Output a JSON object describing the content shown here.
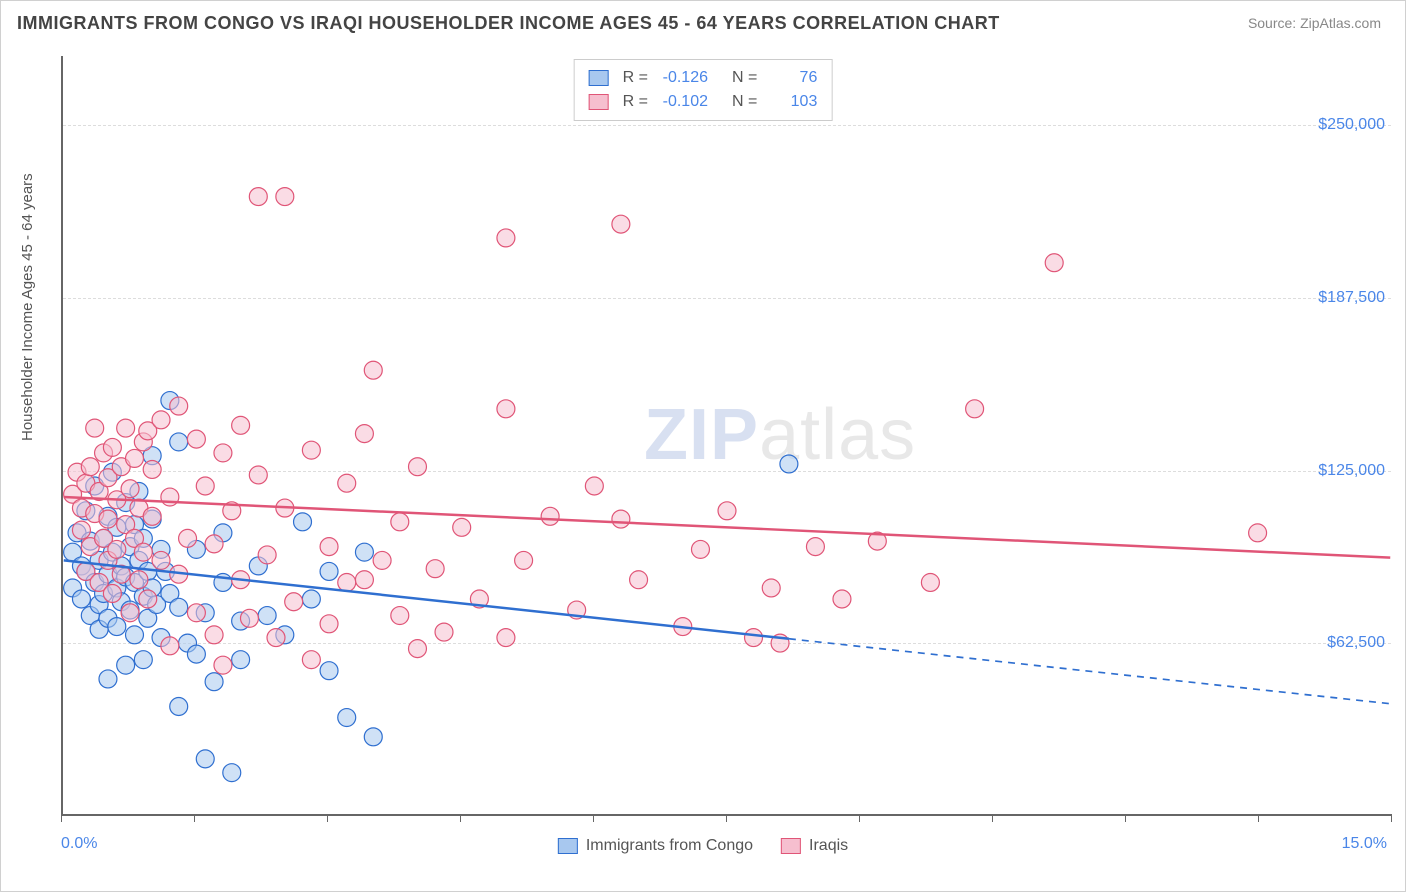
{
  "title": "IMMIGRANTS FROM CONGO VS IRAQI HOUSEHOLDER INCOME AGES 45 - 64 YEARS CORRELATION CHART",
  "source": "Source: ZipAtlas.com",
  "watermark_a": "ZIP",
  "watermark_b": "atlas",
  "chart": {
    "type": "scatter",
    "ylabel": "Householder Income Ages 45 - 64 years",
    "xlim": [
      0.0,
      15.0
    ],
    "ylim": [
      0,
      275000
    ],
    "ytick_values": [
      62500,
      125000,
      187500,
      250000
    ],
    "ytick_labels": [
      "$62,500",
      "$125,000",
      "$187,500",
      "$250,000"
    ],
    "xtick_values": [
      0,
      1.5,
      3.0,
      4.5,
      6.0,
      7.5,
      9.0,
      10.5,
      12.0,
      13.5,
      15.0
    ],
    "xaxis_labels": {
      "min": "0.0%",
      "max": "15.0%"
    },
    "grid_color": "#dddddd",
    "background": "#ffffff",
    "marker_radius": 9,
    "marker_opacity": 0.55,
    "marker_stroke_width": 1.2,
    "line_width": 2.5,
    "series": [
      {
        "name": "Immigrants from Congo",
        "fill": "#a8c8ef",
        "stroke": "#2f6fd0",
        "line_color": "#2f6fd0",
        "r": "-0.126",
        "n": "76",
        "regression": {
          "x0": 0.0,
          "y0": 92000,
          "x1": 15.0,
          "y1": 40000,
          "solid_until_x": 8.2
        },
        "points": [
          [
            0.1,
            95000
          ],
          [
            0.1,
            82000
          ],
          [
            0.15,
            102000
          ],
          [
            0.2,
            90000
          ],
          [
            0.2,
            78000
          ],
          [
            0.25,
            110000
          ],
          [
            0.25,
            88000
          ],
          [
            0.3,
            72000
          ],
          [
            0.3,
            99000
          ],
          [
            0.35,
            84000
          ],
          [
            0.35,
            119000
          ],
          [
            0.4,
            76000
          ],
          [
            0.4,
            92000
          ],
          [
            0.4,
            67000
          ],
          [
            0.45,
            100000
          ],
          [
            0.45,
            80000
          ],
          [
            0.5,
            108000
          ],
          [
            0.5,
            87000
          ],
          [
            0.5,
            71000
          ],
          [
            0.55,
            95000
          ],
          [
            0.55,
            124000
          ],
          [
            0.6,
            82000
          ],
          [
            0.6,
            104000
          ],
          [
            0.6,
            68000
          ],
          [
            0.65,
            90000
          ],
          [
            0.65,
            77000
          ],
          [
            0.7,
            113000
          ],
          [
            0.7,
            86000
          ],
          [
            0.75,
            97000
          ],
          [
            0.75,
            74000
          ],
          [
            0.8,
            105000
          ],
          [
            0.8,
            84000
          ],
          [
            0.8,
            65000
          ],
          [
            0.85,
            92000
          ],
          [
            0.85,
            117000
          ],
          [
            0.9,
            79000
          ],
          [
            0.9,
            100000
          ],
          [
            0.95,
            88000
          ],
          [
            0.95,
            71000
          ],
          [
            1.0,
            107000
          ],
          [
            1.0,
            82000
          ],
          [
            1.0,
            130000
          ],
          [
            1.05,
            76000
          ],
          [
            1.1,
            96000
          ],
          [
            1.1,
            64000
          ],
          [
            1.15,
            88000
          ],
          [
            1.2,
            150000
          ],
          [
            1.2,
            80000
          ],
          [
            1.3,
            39000
          ],
          [
            1.3,
            135000
          ],
          [
            1.4,
            62000
          ],
          [
            1.5,
            58000
          ],
          [
            1.5,
            96000
          ],
          [
            1.6,
            73000
          ],
          [
            1.6,
            20000
          ],
          [
            1.7,
            48000
          ],
          [
            1.8,
            102000
          ],
          [
            1.8,
            84000
          ],
          [
            0.7,
            54000
          ],
          [
            2.0,
            70000
          ],
          [
            2.0,
            56000
          ],
          [
            0.9,
            56000
          ],
          [
            2.2,
            90000
          ],
          [
            2.3,
            72000
          ],
          [
            2.5,
            65000
          ],
          [
            2.7,
            106000
          ],
          [
            2.8,
            78000
          ],
          [
            3.0,
            52000
          ],
          [
            3.0,
            88000
          ],
          [
            3.2,
            35000
          ],
          [
            3.4,
            95000
          ],
          [
            3.5,
            28000
          ],
          [
            1.3,
            75000
          ],
          [
            0.5,
            49000
          ],
          [
            1.9,
            15000
          ],
          [
            8.2,
            127000
          ]
        ]
      },
      {
        "name": "Iraqis",
        "fill": "#f6bfcf",
        "stroke": "#e05577",
        "line_color": "#e05577",
        "r": "-0.102",
        "n": "103",
        "regression": {
          "x0": 0.0,
          "y0": 115000,
          "x1": 15.0,
          "y1": 93000,
          "solid_until_x": 15.0
        },
        "points": [
          [
            0.1,
            116000
          ],
          [
            0.15,
            124000
          ],
          [
            0.2,
            103000
          ],
          [
            0.2,
            111000
          ],
          [
            0.25,
            88000
          ],
          [
            0.25,
            120000
          ],
          [
            0.3,
            97000
          ],
          [
            0.3,
            126000
          ],
          [
            0.35,
            109000
          ],
          [
            0.35,
            140000
          ],
          [
            0.4,
            84000
          ],
          [
            0.4,
            117000
          ],
          [
            0.45,
            100000
          ],
          [
            0.45,
            131000
          ],
          [
            0.5,
            92000
          ],
          [
            0.5,
            122000
          ],
          [
            0.5,
            107000
          ],
          [
            0.55,
            80000
          ],
          [
            0.55,
            133000
          ],
          [
            0.6,
            114000
          ],
          [
            0.6,
            96000
          ],
          [
            0.65,
            126000
          ],
          [
            0.65,
            87000
          ],
          [
            0.7,
            140000
          ],
          [
            0.7,
            105000
          ],
          [
            0.75,
            73000
          ],
          [
            0.75,
            118000
          ],
          [
            0.8,
            100000
          ],
          [
            0.8,
            129000
          ],
          [
            0.85,
            85000
          ],
          [
            0.85,
            111000
          ],
          [
            0.9,
            135000
          ],
          [
            0.9,
            95000
          ],
          [
            0.95,
            139000
          ],
          [
            0.95,
            78000
          ],
          [
            1.0,
            108000
          ],
          [
            1.0,
            125000
          ],
          [
            1.1,
            143000
          ],
          [
            1.1,
            92000
          ],
          [
            1.2,
            61000
          ],
          [
            1.2,
            115000
          ],
          [
            1.3,
            148000
          ],
          [
            1.3,
            87000
          ],
          [
            1.4,
            100000
          ],
          [
            1.5,
            136000
          ],
          [
            1.5,
            73000
          ],
          [
            1.6,
            119000
          ],
          [
            1.7,
            65000
          ],
          [
            1.7,
            98000
          ],
          [
            1.8,
            131000
          ],
          [
            1.8,
            54000
          ],
          [
            1.9,
            110000
          ],
          [
            2.0,
            141000
          ],
          [
            2.0,
            85000
          ],
          [
            2.1,
            71000
          ],
          [
            2.2,
            123000
          ],
          [
            2.2,
            224000
          ],
          [
            2.3,
            94000
          ],
          [
            2.4,
            64000
          ],
          [
            2.5,
            111000
          ],
          [
            2.5,
            224000
          ],
          [
            2.6,
            77000
          ],
          [
            2.8,
            132000
          ],
          [
            2.8,
            56000
          ],
          [
            3.0,
            97000
          ],
          [
            3.0,
            69000
          ],
          [
            3.2,
            120000
          ],
          [
            3.2,
            84000
          ],
          [
            3.4,
            85000
          ],
          [
            3.4,
            138000
          ],
          [
            3.5,
            161000
          ],
          [
            3.6,
            92000
          ],
          [
            3.8,
            72000
          ],
          [
            3.8,
            106000
          ],
          [
            4.0,
            60000
          ],
          [
            4.0,
            126000
          ],
          [
            4.2,
            89000
          ],
          [
            4.3,
            66000
          ],
          [
            4.5,
            104000
          ],
          [
            4.7,
            78000
          ],
          [
            5.0,
            147000
          ],
          [
            5.0,
            209000
          ],
          [
            5.0,
            64000
          ],
          [
            5.2,
            92000
          ],
          [
            5.5,
            108000
          ],
          [
            5.8,
            74000
          ],
          [
            6.0,
            119000
          ],
          [
            6.3,
            214000
          ],
          [
            6.3,
            107000
          ],
          [
            6.5,
            85000
          ],
          [
            7.0,
            68000
          ],
          [
            7.2,
            96000
          ],
          [
            7.5,
            110000
          ],
          [
            7.8,
            64000
          ],
          [
            8.0,
            82000
          ],
          [
            8.1,
            62000
          ],
          [
            8.5,
            97000
          ],
          [
            8.8,
            78000
          ],
          [
            9.2,
            99000
          ],
          [
            9.8,
            84000
          ],
          [
            10.3,
            147000
          ],
          [
            11.2,
            200000
          ],
          [
            13.5,
            102000
          ]
        ]
      }
    ]
  },
  "legend_bottom": [
    {
      "label": "Immigrants from Congo",
      "fill": "#a8c8ef",
      "stroke": "#2f6fd0"
    },
    {
      "label": "Iraqis",
      "fill": "#f6bfcf",
      "stroke": "#e05577"
    }
  ]
}
